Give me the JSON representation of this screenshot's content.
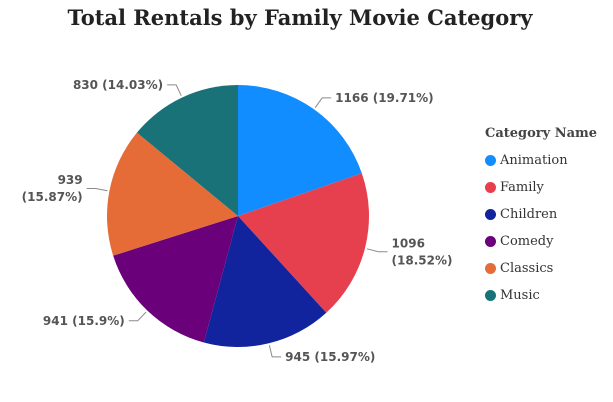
{
  "chart_data": {
    "type": "pie",
    "title": "Total Rentals by Family Movie Category",
    "legend_title": "Category Name",
    "legend_position": "right",
    "categories": [
      "Animation",
      "Family",
      "Children",
      "Comedy",
      "Classics",
      "Music"
    ],
    "values": [
      1166,
      1096,
      945,
      941,
      939,
      830
    ],
    "percent_labels": [
      "19.71%",
      "18.52%",
      "15.97%",
      "15.9%",
      "15.87%",
      "14.03%"
    ],
    "data_labels": [
      [
        "1166 (19.71%)"
      ],
      [
        "1096",
        "(18.52%)"
      ],
      [
        "945 (15.97%)"
      ],
      [
        "941 (15.9%)"
      ],
      [
        "939",
        "(15.87%)"
      ],
      [
        "830 (14.03%)"
      ]
    ],
    "colors": [
      "#118dff",
      "#e6404f",
      "#12239e",
      "#6b007b",
      "#e66c37",
      "#197278"
    ]
  }
}
